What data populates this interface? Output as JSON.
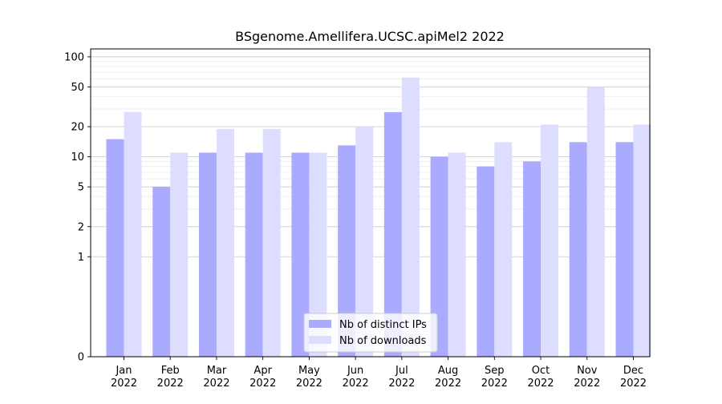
{
  "chart_data": {
    "type": "bar",
    "title": "BSgenome.Amellifera.UCSC.apiMel2 2022",
    "xlabel": "",
    "ylabel": "",
    "yscale": "symlog",
    "ylim": [
      0,
      120
    ],
    "yticks": [
      0,
      1,
      2,
      5,
      10,
      20,
      50,
      100
    ],
    "ytick_labels": [
      "0",
      "1",
      "2",
      "5",
      "10",
      "20",
      "50",
      "100"
    ],
    "categories": [
      "Jan\n2022",
      "Feb\n2022",
      "Mar\n2022",
      "Apr\n2022",
      "May\n2022",
      "Jun\n2022",
      "Jul\n2022",
      "Aug\n2022",
      "Sep\n2022",
      "Oct\n2022",
      "Nov\n2022",
      "Dec\n2022"
    ],
    "series": [
      {
        "name": "Nb of distinct IPs",
        "color": "#aaaaff",
        "values": [
          15,
          5,
          11,
          11,
          11,
          13,
          28,
          10,
          8,
          9,
          14,
          14
        ]
      },
      {
        "name": "Nb of downloads",
        "color": "#ddddff",
        "values": [
          28,
          11,
          19,
          19,
          11,
          20,
          62,
          11,
          14,
          21,
          50,
          21
        ]
      }
    ],
    "grid": "y",
    "legend_position": "lower center"
  }
}
